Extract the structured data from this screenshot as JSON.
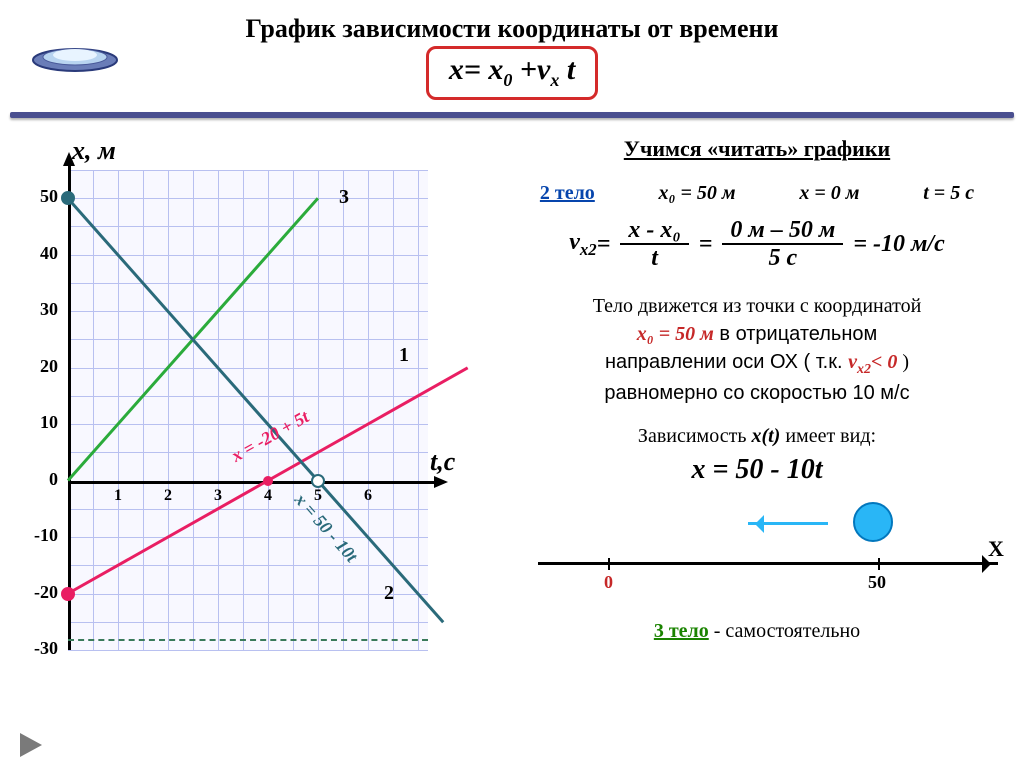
{
  "header": {
    "title": "График  зависимости координаты от времени",
    "formula_lhs": "x= x",
    "formula_sub1": "0",
    "formula_mid": " +v",
    "formula_sub2": "x",
    "formula_rhs": " t"
  },
  "chart": {
    "y_label": "x, м",
    "x_label": "t,с",
    "xlim": [
      0,
      7.2
    ],
    "ylim": [
      -30,
      55
    ],
    "grid_step_x": 0.5,
    "grid_step_y": 5,
    "x_ticks": [
      1,
      2,
      3,
      4,
      5,
      6
    ],
    "y_ticks": [
      -30,
      -20,
      -10,
      0,
      10,
      20,
      30,
      40,
      50
    ],
    "x_axis_at_y": 0,
    "grid_color": "#b8c0f0",
    "bg_color": "#f8f8ff",
    "lines": {
      "l1": {
        "color": "#e91e63",
        "p1": [
          0,
          -20
        ],
        "p2": [
          8,
          20
        ],
        "label": "1",
        "eq": "x = -20 + 5t",
        "point": {
          "t": 0,
          "x": -20
        }
      },
      "l2": {
        "color": "#2a6a7a",
        "p1": [
          0,
          50
        ],
        "p2": [
          7.5,
          -25
        ],
        "label": "2",
        "eq": "x = 50 - 10t",
        "point": {
          "t": 0,
          "x": 50
        },
        "point2": {
          "t": 5,
          "x": 0
        }
      },
      "l3": {
        "color": "#2bab3b",
        "p1": [
          0,
          0
        ],
        "p2": [
          5,
          50
        ],
        "label": "3"
      }
    },
    "eq1_color": "#e91e63",
    "eq2_color": "#2a6a7a",
    "label_positions": {
      "l1": {
        "t": 6.5,
        "x": 22
      },
      "l2": {
        "t": 6.2,
        "x": -20
      },
      "l3": {
        "t": 5.3,
        "x": 50
      }
    }
  },
  "right": {
    "subtitle": "Учимся   «читать» графики",
    "body2": "2 тело",
    "x0": "x₀ = 50 м",
    "x_eq": "x = 0 м",
    "t_eq": "t = 5 с",
    "vx_lhs": "v",
    "vx_sub": "x2",
    "eq_sign": " = ",
    "frac1_num": "x - x₀",
    "frac1_den": "t",
    "frac2_num": "0 м – 50 м",
    "frac2_den": "5 с",
    "result": " = -10 м/с",
    "desc1": "Тело движется из точки с координатой",
    "desc2a": "x₀ = 50 м",
    "desc2b": "  в отрицательном",
    "desc3a": "направлении оси ОХ  ( т.к. ",
    "desc3_red": "v",
    "desc3_red_sub": "x2",
    "desc3_red_cond": "< 0",
    "desc3b": " )",
    "desc4": "равномерно со скоростью 10 м/с",
    "dep": "Зависимость  ",
    "dep_xt": "x(t)",
    "dep2": "  имеет вид:",
    "result_eq": "x = 50 - 10t"
  },
  "numline": {
    "ball_color": "#29b6f6",
    "ball_border": "#0277bd",
    "arrow_color": "#29b6f6",
    "origin_label": "0",
    "origin_color": "#c62828",
    "fifty_label": "50",
    "axis_label": "X"
  },
  "body3": {
    "link": "3 тело",
    "dash": "  -  ",
    "rest": "самостоятельно"
  }
}
